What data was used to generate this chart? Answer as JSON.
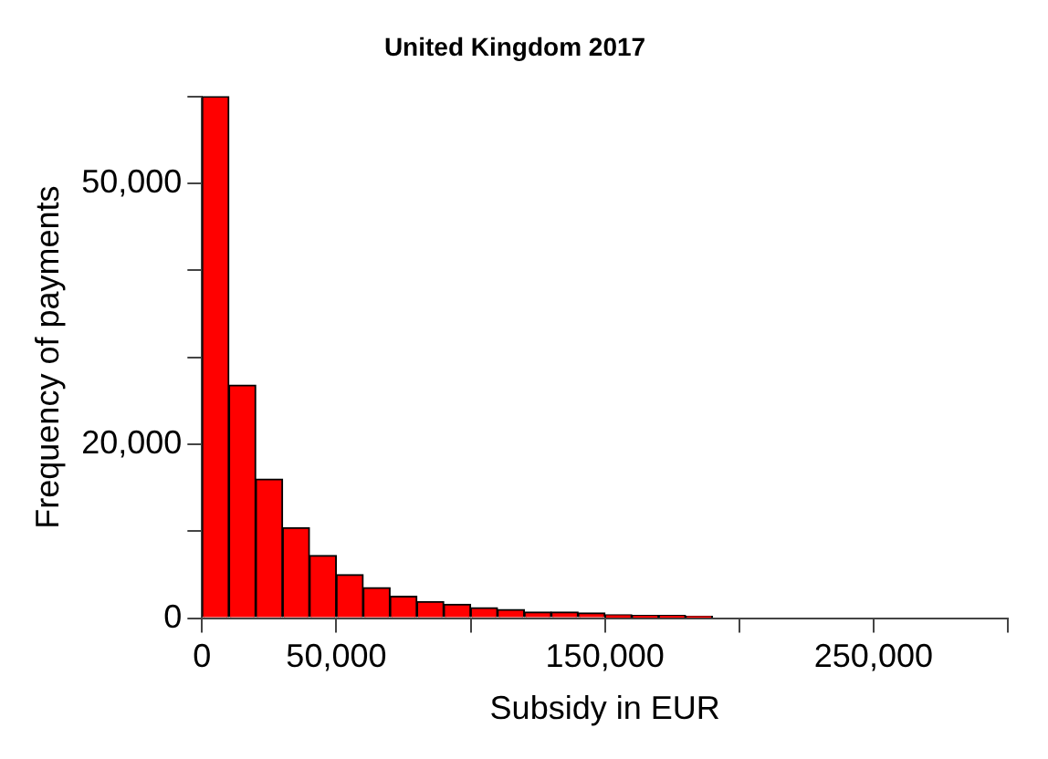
{
  "chart_data": {
    "type": "histogram",
    "title": "United Kingdom 2017",
    "xlabel": "Subsidy in EUR",
    "ylabel": "Frequency of payments",
    "color": "#ff0000",
    "bins": [
      0,
      10000,
      20000,
      30000,
      40000,
      50000,
      60000,
      70000,
      80000,
      90000,
      100000,
      110000,
      120000,
      130000,
      140000,
      150000,
      160000,
      170000,
      180000,
      190000
    ],
    "values": [
      60000,
      26800,
      16000,
      10400,
      7200,
      5000,
      3500,
      2500,
      1900,
      1600,
      1200,
      1000,
      700,
      700,
      600,
      400,
      300,
      300,
      200
    ],
    "xlim": [
      0,
      300000
    ],
    "xticks": [
      0,
      {
        "value": 50000,
        "label": "50,000"
      },
      {
        "value": 100000,
        "label": null
      },
      {
        "value": 150000,
        "label": "150,000"
      },
      {
        "value": 200000,
        "label": null
      },
      {
        "value": 250000,
        "label": "250,000"
      },
      {
        "value": 300000,
        "label": null
      }
    ],
    "ylim": [
      0,
      60000
    ],
    "yticks": [
      0,
      {
        "value": 10000,
        "label": null
      },
      {
        "value": 20000,
        "label": "20,000"
      },
      {
        "value": 30000,
        "label": null
      },
      {
        "value": 40000,
        "label": null
      },
      {
        "value": 50000,
        "label": "50,000"
      },
      {
        "value": 60000,
        "label": null
      }
    ],
    "grid": false,
    "legend": false
  }
}
